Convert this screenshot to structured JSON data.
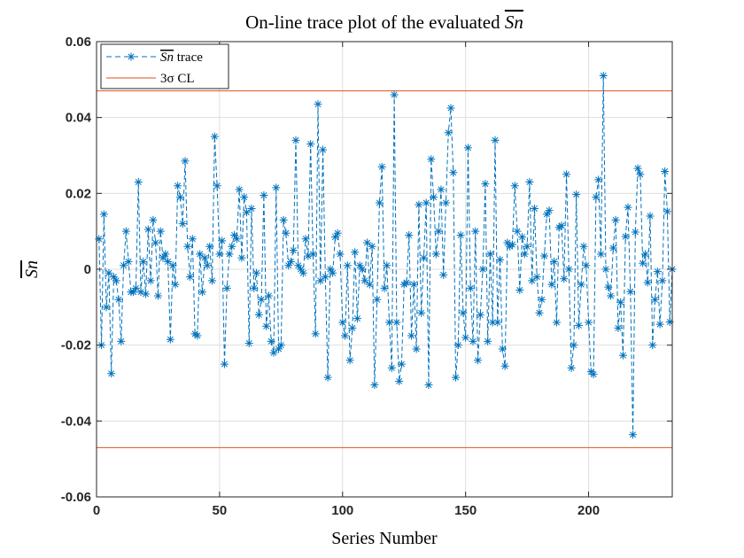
{
  "chart_data": {
    "type": "line",
    "title": {
      "prefix": "On-line trace plot of the evaluated ",
      "symbol": "Sn"
    },
    "xlabel": "Series Number",
    "ylabel": "Sn",
    "xlim": [
      0,
      234
    ],
    "ylim": [
      -0.06,
      0.06
    ],
    "xticks": [
      0,
      50,
      100,
      150,
      200
    ],
    "yticks": [
      -0.06,
      -0.04,
      -0.02,
      0,
      0.02,
      0.04,
      0.06
    ],
    "ytick_labels": [
      "-0.06",
      "-0.04",
      "-0.02",
      "0",
      "0.02",
      "0.04",
      "0.06"
    ],
    "grid": true,
    "legend": {
      "placement": "top-left",
      "entries": [
        {
          "symbol": "Sn",
          "suffix": " trace"
        },
        {
          "label": "3σ CL"
        }
      ]
    },
    "control_limits": [
      0.047,
      -0.047
    ],
    "colors": {
      "trace": "#0072BD",
      "cl": "#D95319"
    },
    "series": [
      {
        "name": "Sn trace",
        "values": [
          0.008,
          -0.02,
          0.0145,
          -0.01,
          -0.001,
          -0.0275,
          -0.002,
          -0.003,
          -0.008,
          -0.019,
          0.001,
          0.01,
          0.002,
          -0.006,
          -0.006,
          -0.005,
          0.023,
          -0.006,
          0.002,
          -0.0065,
          0.0105,
          -0.003,
          0.013,
          0.007,
          -0.007,
          0.01,
          0.003,
          0.004,
          0.002,
          -0.0185,
          0.001,
          -0.004,
          0.022,
          0.019,
          0.012,
          0.0285,
          0.006,
          -0.002,
          0.008,
          -0.017,
          -0.0175,
          0.004,
          -0.006,
          0.003,
          0.001,
          0.006,
          -0.003,
          0.035,
          0.022,
          0.004,
          0.0075,
          -0.025,
          -0.005,
          0.004,
          0.006,
          0.009,
          0.008,
          0.021,
          0.003,
          0.019,
          0.015,
          -0.0195,
          0.016,
          -0.005,
          -0.001,
          -0.012,
          -0.008,
          0.0195,
          -0.015,
          -0.007,
          -0.019,
          -0.022,
          0.0215,
          -0.021,
          -0.02,
          0.013,
          0.0095,
          0.001,
          0.002,
          0.005,
          0.034,
          0.001,
          0.0,
          -0.001,
          0.008,
          0.0035,
          0.033,
          0.004,
          -0.017,
          0.0435,
          -0.003,
          0.0315,
          -0.002,
          -0.0285,
          0.0,
          -0.001,
          0.0085,
          0.0095,
          0.004,
          -0.014,
          -0.0175,
          0.001,
          -0.024,
          -0.0155,
          0.0045,
          -0.013,
          0.001,
          0.0,
          -0.003,
          0.007,
          -0.004,
          0.006,
          -0.0305,
          -0.008,
          0.0175,
          0.027,
          -0.005,
          0.001,
          -0.014,
          -0.026,
          0.046,
          -0.014,
          -0.0295,
          -0.025,
          -0.004,
          -0.0035,
          0.009,
          -0.0175,
          -0.004,
          -0.021,
          0.017,
          -0.0115,
          0.003,
          0.0175,
          -0.0305,
          0.029,
          0.019,
          0.004,
          0.01,
          0.021,
          -0.0015,
          0.0175,
          0.036,
          0.0425,
          0.0255,
          -0.0285,
          -0.02,
          0.009,
          -0.0115,
          -0.018,
          0.032,
          -0.005,
          -0.019,
          0.01,
          -0.024,
          -0.012,
          0.0,
          0.0225,
          -0.019,
          0.004,
          -0.014,
          0.034,
          -0.014,
          0.0025,
          -0.021,
          -0.0255,
          0.007,
          0.006,
          0.0065,
          0.022,
          0.01,
          -0.0055,
          0.0085,
          0.004,
          0.006,
          0.023,
          -0.003,
          0.016,
          -0.002,
          -0.0115,
          -0.008,
          0.0035,
          0.0145,
          0.0155,
          -0.004,
          0.002,
          -0.014,
          0.011,
          0.0115,
          -0.0025,
          0.025,
          0.0,
          -0.026,
          -0.02,
          0.0197,
          -0.0148,
          -0.004,
          0.006,
          0.001,
          -0.014,
          -0.027,
          -0.0277,
          0.019,
          0.0236,
          0.004,
          0.051,
          0.0,
          -0.0047,
          -0.007,
          0.0056,
          0.013,
          -0.0155,
          -0.0087,
          -0.0227,
          0.0086,
          0.0163,
          -0.0059,
          -0.0436,
          0.0098,
          0.0266,
          0.025,
          0.0016,
          0.004,
          -0.0035,
          0.014,
          -0.02,
          -0.008,
          -0.0006,
          -0.0145,
          -0.003,
          0.0258,
          0.0152,
          -0.0139,
          0.0
        ]
      }
    ]
  }
}
